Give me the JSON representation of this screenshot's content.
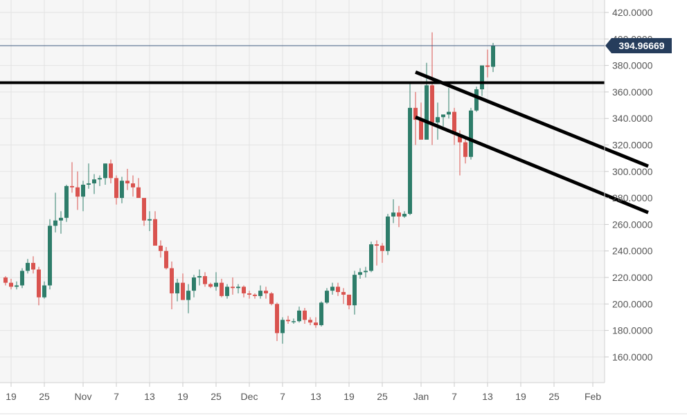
{
  "chart_data": {
    "type": "candlestick",
    "y_ticks": [
      "160.0000",
      "180.0000",
      "200.0000",
      "220.0000",
      "240.0000",
      "260.0000",
      "280.0000",
      "300.0000",
      "320.0000",
      "340.0000",
      "360.0000",
      "380.0000",
      "400.0000",
      "420.0000"
    ],
    "y_tick_values": [
      160,
      180,
      200,
      220,
      240,
      260,
      280,
      300,
      320,
      340,
      360,
      380,
      400,
      420
    ],
    "ylim": [
      140,
      428
    ],
    "x_ticks": [
      "19",
      "25",
      "Nov",
      "7",
      "13",
      "19",
      "25",
      "Dec",
      "7",
      "13",
      "19",
      "25",
      "Jan",
      "7",
      "13",
      "19",
      "25",
      "Feb"
    ],
    "x_tick_days": [
      0,
      6,
      13,
      19,
      25,
      31,
      37,
      43,
      49,
      55,
      61,
      67,
      74,
      80,
      86,
      92,
      98,
      105
    ],
    "x_day_range": [
      -1.6,
      105.4
    ],
    "current_price": 394.96669,
    "current_price_label": "394.96669",
    "horizontal_level": 367,
    "channel_upper": [
      [
        73,
        375
      ],
      [
        115,
        304
      ]
    ],
    "channel_lower": [
      [
        73,
        341
      ],
      [
        115,
        269
      ]
    ],
    "up_color": "#2e7d6a",
    "down_color": "#d9534f",
    "candles": [
      [
        -1,
        220,
        221,
        214,
        216
      ],
      [
        0,
        216,
        219,
        211,
        213
      ],
      [
        1,
        213,
        217,
        211,
        214
      ],
      [
        2,
        214,
        227,
        212,
        225
      ],
      [
        3,
        225,
        234,
        223,
        231
      ],
      [
        4,
        231,
        236,
        223,
        226
      ],
      [
        5,
        226,
        228,
        199,
        205
      ],
      [
        6,
        205,
        217,
        204,
        214
      ],
      [
        7,
        214,
        264,
        211,
        259
      ],
      [
        8,
        259,
        284,
        254,
        263
      ],
      [
        9,
        263,
        270,
        253,
        265
      ],
      [
        10,
        265,
        290,
        262,
        289
      ],
      [
        11,
        289,
        307,
        284,
        288
      ],
      [
        12,
        288,
        300,
        271,
        281
      ],
      [
        13,
        281,
        293,
        270,
        290
      ],
      [
        14,
        290,
        306,
        287,
        291
      ],
      [
        15,
        291,
        298,
        283,
        294
      ],
      [
        16,
        294,
        297,
        289,
        295
      ],
      [
        17,
        295,
        306,
        290,
        306
      ],
      [
        18,
        306,
        309,
        291,
        295
      ],
      [
        19,
        295,
        297,
        275,
        280
      ],
      [
        20,
        280,
        296,
        276,
        293
      ],
      [
        21,
        293,
        302,
        286,
        291
      ],
      [
        22,
        291,
        297,
        281,
        288
      ],
      [
        23,
        288,
        295,
        281,
        280
      ],
      [
        24,
        280,
        279,
        259,
        263
      ],
      [
        25,
        263,
        270,
        255,
        264
      ],
      [
        26,
        264,
        270,
        246,
        244
      ],
      [
        27,
        244,
        248,
        235,
        240
      ],
      [
        28,
        240,
        243,
        226,
        227
      ],
      [
        29,
        227,
        232,
        196,
        208
      ],
      [
        30,
        208,
        219,
        202,
        216
      ],
      [
        31,
        216,
        223,
        205,
        203
      ],
      [
        32,
        203,
        215,
        193,
        210
      ],
      [
        33,
        210,
        222,
        205,
        220
      ],
      [
        34,
        220,
        226,
        214,
        221
      ],
      [
        35,
        221,
        224,
        213,
        215
      ],
      [
        36,
        215,
        216,
        212,
        213
      ],
      [
        37,
        213,
        224,
        210,
        216
      ],
      [
        38,
        216,
        219,
        205,
        206
      ],
      [
        39,
        206,
        215,
        204,
        213
      ],
      [
        40,
        213,
        220,
        207,
        212
      ],
      [
        41,
        212,
        215,
        208,
        213
      ],
      [
        42,
        213,
        214,
        205,
        208
      ],
      [
        43,
        208,
        210,
        204,
        207
      ],
      [
        44,
        207,
        208,
        204,
        206
      ],
      [
        45,
        206,
        214,
        204,
        210
      ],
      [
        46,
        210,
        213,
        204,
        208
      ],
      [
        47,
        208,
        209,
        199,
        200
      ],
      [
        48,
        200,
        201,
        172,
        178
      ],
      [
        49,
        178,
        190,
        170,
        188
      ],
      [
        50,
        188,
        191,
        185,
        187
      ],
      [
        51,
        187,
        189,
        185,
        187
      ],
      [
        52,
        187,
        198,
        186,
        195
      ],
      [
        53,
        195,
        197,
        185,
        188
      ],
      [
        54,
        188,
        190,
        184,
        186
      ],
      [
        55,
        186,
        190,
        182,
        184
      ],
      [
        56,
        184,
        202,
        183,
        201
      ],
      [
        57,
        201,
        212,
        200,
        210
      ],
      [
        58,
        210,
        216,
        207,
        213
      ],
      [
        59,
        213,
        216,
        206,
        209
      ],
      [
        60,
        209,
        212,
        200,
        207
      ],
      [
        61,
        207,
        207,
        196,
        199
      ],
      [
        62,
        199,
        225,
        192,
        222
      ],
      [
        63,
        222,
        227,
        219,
        224
      ],
      [
        64,
        224,
        228,
        220,
        225
      ],
      [
        65,
        225,
        247,
        224,
        245
      ],
      [
        66,
        245,
        248,
        229,
        244
      ],
      [
        67,
        244,
        246,
        231,
        240
      ],
      [
        68,
        240,
        268,
        237,
        266
      ],
      [
        69,
        266,
        279,
        261,
        269
      ],
      [
        70,
        269,
        274,
        258,
        266
      ],
      [
        71,
        266,
        270,
        265,
        268
      ],
      [
        72,
        268,
        367,
        267,
        348
      ],
      [
        73,
        348,
        360,
        320,
        339
      ],
      [
        74,
        339,
        352,
        326,
        324
      ],
      [
        75,
        324,
        382,
        325,
        365
      ],
      [
        76,
        365,
        405,
        320,
        337
      ],
      [
        77,
        337,
        352,
        324,
        341
      ],
      [
        78,
        341,
        342,
        334,
        343
      ],
      [
        79,
        343,
        363,
        340,
        345
      ],
      [
        80,
        345,
        348,
        320,
        328
      ],
      [
        81,
        328,
        331,
        297,
        322
      ],
      [
        82,
        322,
        326,
        306,
        311
      ],
      [
        83,
        311,
        348,
        309,
        346
      ],
      [
        84,
        346,
        364,
        345,
        362
      ],
      [
        85,
        362,
        378,
        357,
        380
      ],
      [
        86,
        380,
        392,
        371,
        379
      ],
      [
        87,
        379,
        397,
        375,
        395
      ]
    ]
  }
}
